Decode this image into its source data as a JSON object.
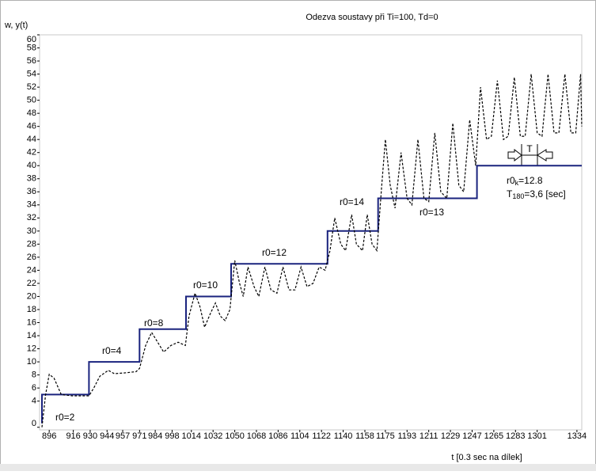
{
  "chart_data": {
    "type": "line",
    "title": "Odezva soustavy při Ti=100, Td=0",
    "ylabel": "w, y(t)",
    "xlabel": "t [0.3 sec na dílek]",
    "xlim": [
      888,
      1338
    ],
    "ylim": [
      -0.4,
      60
    ],
    "xticks": [
      896,
      916,
      930,
      944,
      957,
      971,
      984,
      998,
      1014,
      1032,
      1050,
      1068,
      1086,
      1104,
      1122,
      1140,
      1158,
      1175,
      1193,
      1211,
      1229,
      1247,
      1265,
      1283,
      1301,
      1334
    ],
    "yticks": [
      0,
      4,
      6,
      8,
      10,
      12,
      14,
      16,
      18,
      20,
      22,
      24,
      26,
      28,
      30,
      32,
      34,
      36,
      38,
      40,
      42,
      44,
      46,
      48,
      50,
      52,
      54,
      56,
      58,
      60
    ],
    "series": [
      {
        "color": "#1a237e",
        "style": "solid",
        "x": [
          890,
          890,
          929,
          929,
          971,
          971,
          1009.5,
          1009.5,
          1047,
          1047,
          1127,
          1127,
          1169,
          1169,
          1251,
          1251,
          1338
        ],
        "values": [
          0.6,
          5,
          5,
          10,
          10,
          15,
          15,
          20,
          20,
          25,
          25,
          30,
          30,
          35,
          35,
          40,
          40
        ]
      },
      {
        "color": "#000000",
        "style": "dashed",
        "x": [
          890,
          893,
          896,
          900,
          906,
          915,
          929,
          933,
          938,
          945,
          950,
          958,
          968,
          971,
          976,
          981,
          986,
          991,
          997,
          1003,
          1009,
          1012,
          1017,
          1021,
          1025,
          1030,
          1034,
          1038,
          1042,
          1046,
          1050,
          1054,
          1057,
          1061,
          1066,
          1070,
          1075,
          1080,
          1085,
          1090,
          1095,
          1100,
          1105,
          1110,
          1115,
          1120,
          1125,
          1129,
          1133,
          1138,
          1142,
          1147,
          1151,
          1156,
          1160,
          1164,
          1168,
          1172,
          1175,
          1179,
          1183,
          1188,
          1193,
          1197,
          1202,
          1207,
          1211,
          1216,
          1221,
          1226,
          1231,
          1236,
          1240,
          1245,
          1250,
          1254,
          1259,
          1263,
          1268,
          1273,
          1277,
          1282,
          1287,
          1291,
          1296,
          1301,
          1305,
          1310,
          1315,
          1319,
          1324,
          1329,
          1333,
          1337,
          1338
        ],
        "values": [
          0,
          5,
          8.1,
          7.5,
          5,
          4.8,
          4.8,
          6,
          7.8,
          8.7,
          8.2,
          8.3,
          8.5,
          9,
          12.5,
          14.5,
          13,
          11.5,
          12.5,
          13,
          12.5,
          17,
          20.5,
          18.5,
          15.3,
          17.5,
          19,
          17,
          16.3,
          18,
          25.5,
          22,
          20,
          24.5,
          21.5,
          20,
          24.5,
          21,
          20.5,
          24.5,
          21,
          21,
          24.5,
          21.5,
          22,
          24.5,
          24,
          27,
          32,
          28,
          27,
          32.5,
          28,
          27,
          32.5,
          28,
          27,
          37,
          44,
          37,
          33.5,
          42,
          35,
          34,
          44,
          35,
          34.5,
          45,
          36,
          35,
          46.5,
          37,
          36,
          47,
          40,
          52,
          44,
          44.5,
          53,
          44,
          44.5,
          53.5,
          44.5,
          44.5,
          54,
          45,
          44.5,
          54,
          45,
          45,
          54,
          45,
          45,
          54,
          46
        ]
      }
    ],
    "annotations": [
      "r0=2",
      "r0=4",
      "r0=8",
      "r0=10",
      "r0=12",
      "r0=14",
      "r0=13",
      [
        "r0",
        "k",
        "=12.8"
      ],
      [
        "T",
        "180",
        "=3,6 [sec]"
      ],
      "T"
    ]
  }
}
